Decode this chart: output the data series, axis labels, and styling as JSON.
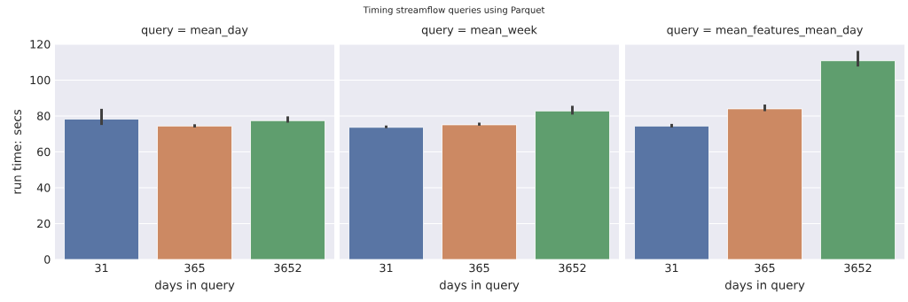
{
  "chart_data": [
    {
      "type": "bar",
      "title": "query = mean_day",
      "xlabel": "days in query",
      "ylabel": "run time: secs",
      "annotations": [
        "Timing streamflow queries using Parquet"
      ],
      "categories": [
        "31",
        "365",
        "3652"
      ],
      "values": [
        78.3,
        74.4,
        77.4
      ],
      "errors": [
        [
          75,
          84
        ],
        [
          73.6,
          75.4
        ],
        [
          76.3,
          79.8
        ]
      ],
      "colors": [
        "#5975a4",
        "#cc8963",
        "#5f9e6e"
      ],
      "ylim": [
        0,
        120
      ],
      "yticks": [
        0,
        20,
        40,
        60,
        80,
        100,
        120
      ],
      "grid": "y"
    },
    {
      "type": "bar",
      "title": "query = mean_week",
      "xlabel": "days in query",
      "categories": [
        "31",
        "365",
        "3652"
      ],
      "values": [
        73.7,
        75.1,
        82.8
      ],
      "errors": [
        [
          73.2,
          74.7
        ],
        [
          74.6,
          76.3
        ],
        [
          80.8,
          85.7
        ]
      ],
      "colors": [
        "#5975a4",
        "#cc8963",
        "#5f9e6e"
      ],
      "ylim": [
        0,
        120
      ],
      "yticks": [
        0,
        20,
        40,
        60,
        80,
        100,
        120
      ],
      "grid": "y",
      "tick_labels": "x"
    },
    {
      "type": "bar",
      "title": "query = mean_features_mean_day",
      "xlabel": "days in query",
      "categories": [
        "31",
        "365",
        "3652"
      ],
      "values": [
        74.4,
        84.0,
        110.8
      ],
      "errors": [
        [
          73.6,
          75.6
        ],
        [
          82.7,
          86.4
        ],
        [
          107.6,
          116.3
        ]
      ],
      "colors": [
        "#5975a4",
        "#cc8963",
        "#5f9e6e"
      ],
      "ylim": [
        0,
        120
      ],
      "yticks": [
        0,
        20,
        40,
        60,
        80,
        100,
        120
      ],
      "grid": "y",
      "tick_labels": "x"
    }
  ]
}
